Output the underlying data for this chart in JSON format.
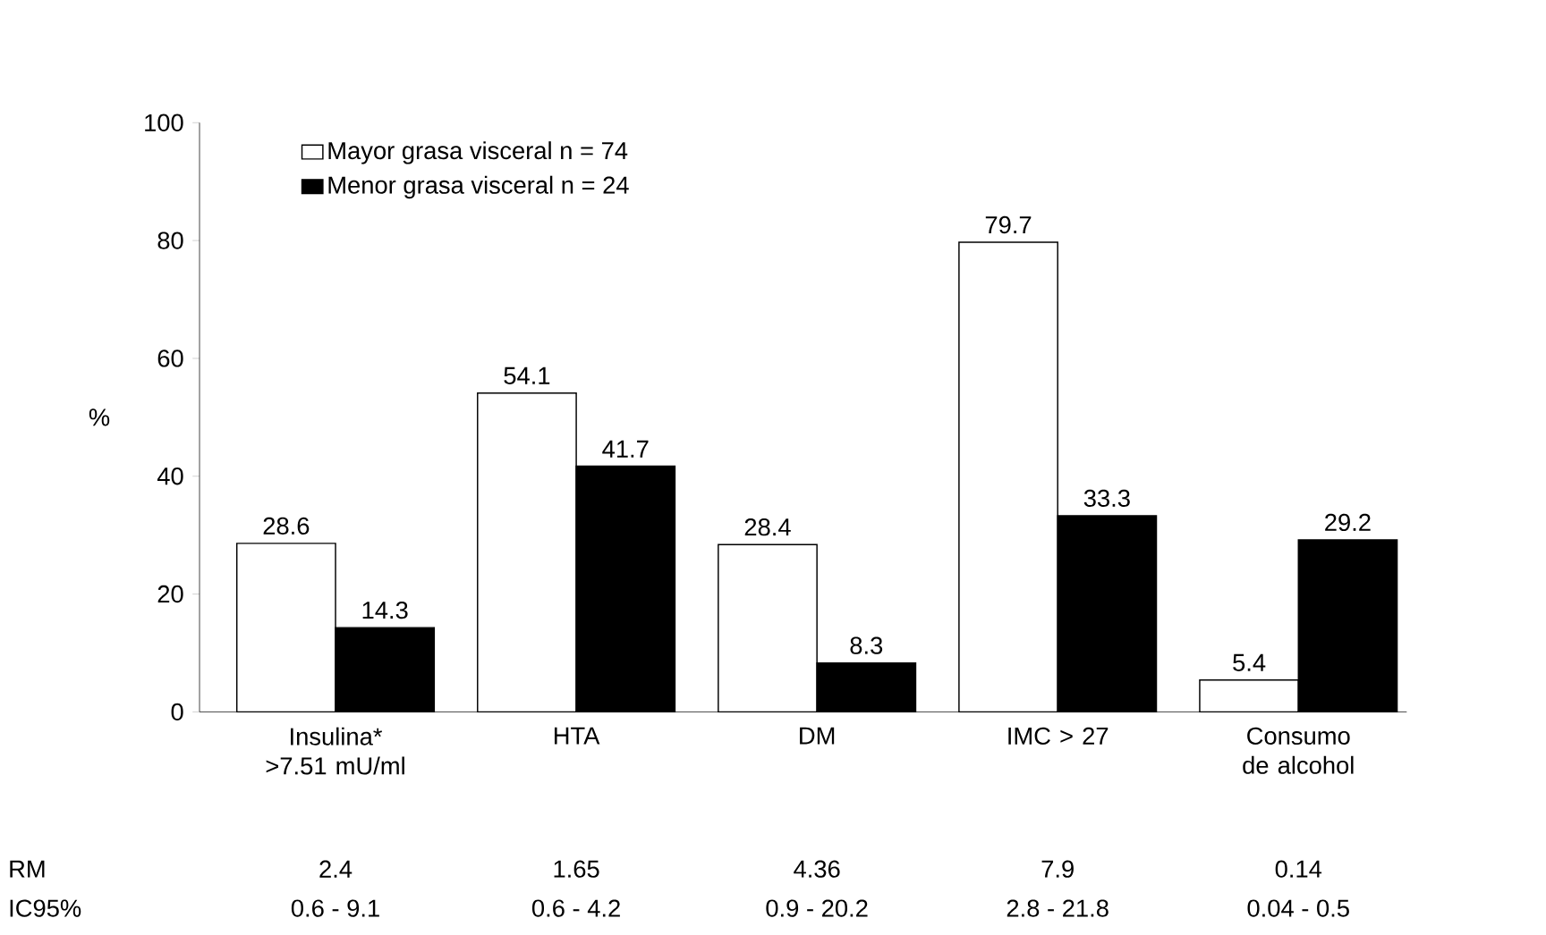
{
  "chart_data": {
    "type": "bar",
    "ylabel": "%",
    "categories": [
      "Insulina* >7.51 mU/ml",
      "HTA",
      "DM",
      "IMC > 27",
      "Consumo de alcohol"
    ],
    "series": [
      {
        "name": "Mayor grasa visceral    n = 74",
        "color": "#ffffff",
        "values": [
          28.6,
          54.1,
          28.4,
          79.7,
          5.4
        ]
      },
      {
        "name": "Menor grasa visceral    n = 24",
        "color": "#000000",
        "values": [
          14.3,
          41.7,
          8.3,
          33.3,
          29.2
        ]
      }
    ],
    "ylim": [
      0,
      100
    ],
    "yticks": [
      0,
      20,
      40,
      60,
      80,
      100
    ],
    "data_labels": true,
    "legend": "top left",
    "grid": false,
    "annotations": [
      "RM",
      "2.4",
      "1.65",
      "4.36",
      "7.9",
      "0.14",
      "IC95%",
      "0.6 - 9.1",
      "0.6 - 4.2",
      "0.9 - 20.2",
      "2.8 - 21.8",
      "0.04 - 0.5"
    ]
  }
}
